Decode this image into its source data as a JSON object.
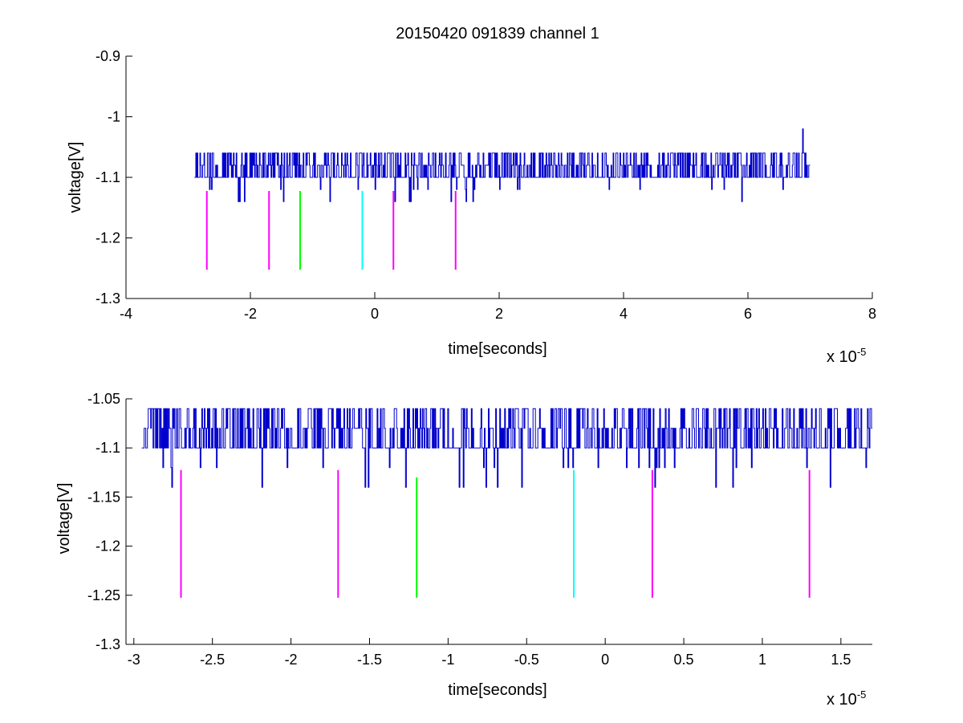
{
  "figure": {
    "title": "20150420 091839 channel 1",
    "background": "#ffffff"
  },
  "chart_data": [
    {
      "type": "line",
      "title": "20150420 091839 channel 1",
      "xlabel": "time[seconds]",
      "ylabel": "voltage[V]",
      "x_exponent_label": "x 10",
      "x_exponent": "-5",
      "xlim": [
        -4e-05,
        8e-05
      ],
      "ylim": [
        -1.3,
        -0.9
      ],
      "x_ticks": [
        -4e-05,
        -2e-05,
        0,
        2e-05,
        4e-05,
        6e-05,
        8e-05
      ],
      "x_tick_labels": [
        "-4",
        "-2",
        "0",
        "2",
        "4",
        "6",
        "8"
      ],
      "y_ticks": [
        -1.3,
        -1.2,
        -1.1,
        -1.0,
        -0.9
      ],
      "y_tick_labels": [
        "-1.3",
        "-1.2",
        "-1.1",
        "-1",
        "-0.9"
      ],
      "grid": false,
      "box": "axes-left-bottom",
      "series": [
        {
          "kind": "signal",
          "color": "#0000cc",
          "x_range": [
            -2.9e-05,
            7e-05
          ],
          "baseline": -1.1,
          "levels": [
            -1.14,
            -1.12,
            -1.1,
            -1.08,
            -1.06
          ],
          "spikes": [
            {
              "x": 6.88e-05,
              "y": -1.02
            }
          ]
        }
      ],
      "markers": [
        {
          "x": -2.7e-05,
          "y_top": -1.1225,
          "y_bottom": -1.2525,
          "color": "#ff00ff"
        },
        {
          "x": -1.7e-05,
          "y_top": -1.1225,
          "y_bottom": -1.2525,
          "color": "#ff00ff"
        },
        {
          "x": -1.2e-05,
          "y_top": -1.1225,
          "y_bottom": -1.2525,
          "color": "#00ff00"
        },
        {
          "x": -2e-06,
          "y_top": -1.1225,
          "y_bottom": -1.2525,
          "color": "#00ffff"
        },
        {
          "x": 3e-06,
          "y_top": -1.1225,
          "y_bottom": -1.2525,
          "color": "#ff00ff"
        },
        {
          "x": 1.3e-05,
          "y_top": -1.1225,
          "y_bottom": -1.2525,
          "color": "#ff00ff"
        }
      ]
    },
    {
      "type": "line",
      "title": "",
      "xlabel": "time[seconds]",
      "ylabel": "voltage[V]",
      "x_exponent_label": "x 10",
      "x_exponent": "-5",
      "xlim": [
        -3.05e-05,
        1.7e-05
      ],
      "ylim": [
        -1.3,
        -1.05
      ],
      "x_ticks": [
        -3e-05,
        -2.5e-05,
        -2e-05,
        -1.5e-05,
        -1e-05,
        -5e-06,
        0,
        5e-06,
        1e-05,
        1.5e-05
      ],
      "x_tick_labels": [
        "-3",
        "-2.5",
        "-2",
        "-1.5",
        "-1",
        "-0.5",
        "0",
        "0.5",
        "1",
        "1.5"
      ],
      "y_ticks": [
        -1.3,
        -1.25,
        -1.2,
        -1.15,
        -1.1,
        -1.05
      ],
      "y_tick_labels": [
        "-1.3",
        "-1.25",
        "-1.2",
        "-1.15",
        "-1.1",
        "-1.05"
      ],
      "grid": false,
      "box": "axes-left-bottom",
      "series": [
        {
          "kind": "signal",
          "color": "#0000cc",
          "x_range": [
            -2.95e-05,
            1.7e-05
          ],
          "baseline": -1.1,
          "levels": [
            -1.14,
            -1.12,
            -1.1,
            -1.08,
            -1.06
          ],
          "spikes": []
        }
      ],
      "markers": [
        {
          "x": -2.7e-05,
          "y_top": -1.1225,
          "y_bottom": -1.2525,
          "color": "#ff00ff"
        },
        {
          "x": -1.7e-05,
          "y_top": -1.1225,
          "y_bottom": -1.2525,
          "color": "#ff00ff"
        },
        {
          "x": -1.2e-05,
          "y_top": -1.13,
          "y_bottom": -1.2525,
          "color": "#00ff00"
        },
        {
          "x": -2e-06,
          "y_top": -1.1225,
          "y_bottom": -1.2525,
          "color": "#00ffff"
        },
        {
          "x": 3e-06,
          "y_top": -1.1225,
          "y_bottom": -1.2525,
          "color": "#ff00ff"
        },
        {
          "x": 1.3e-05,
          "y_top": -1.1225,
          "y_bottom": -1.2525,
          "color": "#ff00ff"
        }
      ]
    }
  ]
}
